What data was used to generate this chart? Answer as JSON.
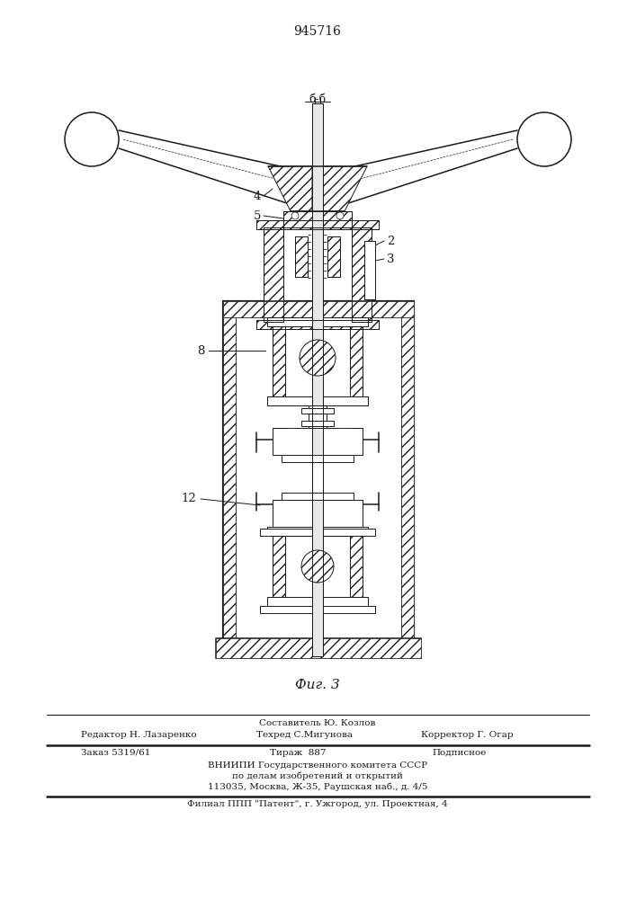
{
  "patent_number": "945716",
  "fig_caption": "Фиг. 3",
  "bg_color": "#ffffff",
  "drawing_color": "#1a1a1a",
  "footer": {
    "line1": "Составитель Ю. Козлов",
    "line2_left": "Редактор Н. Лазаренко",
    "line2_mid": "Техред С.Мигунова",
    "line2_right": "Корректор Г. Огар",
    "line3_left": "Заказ 5319/61",
    "line3_mid": "Тираж  887",
    "line3_right": "Подписное",
    "line4": "ВНИИПИ Государственного комитета СССР",
    "line5": "по делам изобретений и открытий",
    "line6": "113035, Москва, Ж-35, Раушская наб., д. 4/5",
    "line7": "Филиал ППП \"Патент\", г. Ужгород, ул. Проектная, 4"
  },
  "labels": {
    "bb": "б-б",
    "n2": "2",
    "n3": "3",
    "n4": "4",
    "n5": "5",
    "n8": "8",
    "n12": "12"
  }
}
